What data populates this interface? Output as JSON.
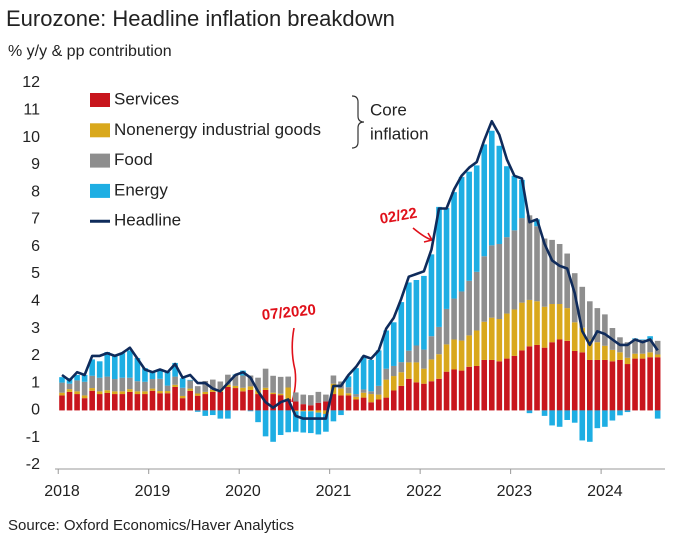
{
  "chart_data": {
    "type": "stacked-bar-line",
    "title": "Eurozone: Headline inflation breakdown",
    "subtitle": "% y/y & pp contribution",
    "source": "Source: Oxford Economics/Haver Analytics",
    "bracket_label": [
      "Core",
      "inflation"
    ],
    "annotations": [
      "07/2020",
      "02/22"
    ],
    "categories": [
      "2018",
      null,
      null,
      null,
      null,
      null,
      null,
      null,
      null,
      null,
      null,
      null,
      "2019",
      null,
      null,
      null,
      null,
      null,
      null,
      null,
      null,
      null,
      null,
      null,
      "2020",
      null,
      null,
      null,
      null,
      null,
      null,
      null,
      null,
      null,
      null,
      null,
      "2021",
      null,
      null,
      null,
      null,
      null,
      null,
      null,
      null,
      null,
      null,
      null,
      "2022",
      null,
      null,
      null,
      null,
      null,
      null,
      null,
      null,
      null,
      null,
      null,
      "2023",
      null,
      null,
      null,
      null,
      null,
      null,
      null,
      null,
      null,
      null,
      null,
      "2024",
      null,
      null,
      null,
      null,
      null,
      null,
      null
    ],
    "series": [
      {
        "name": "Services",
        "color": "#c8151d",
        "values": [
          0.55,
          0.68,
          0.6,
          0.45,
          0.72,
          0.6,
          0.64,
          0.6,
          0.6,
          0.68,
          0.6,
          0.6,
          0.72,
          0.63,
          0.63,
          0.86,
          0.45,
          0.72,
          0.54,
          0.6,
          0.68,
          0.68,
          0.86,
          0.82,
          0.7,
          0.75,
          0.6,
          0.75,
          0.6,
          0.56,
          0.42,
          0.33,
          0.23,
          0.19,
          0.28,
          0.33,
          0.6,
          0.55,
          0.55,
          0.4,
          0.47,
          0.3,
          0.4,
          0.47,
          0.73,
          0.9,
          1.16,
          1.03,
          0.98,
          1.07,
          1.16,
          1.42,
          1.5,
          1.46,
          1.6,
          1.63,
          1.85,
          1.85,
          1.8,
          1.9,
          2.0,
          2.2,
          2.35,
          2.4,
          2.3,
          2.5,
          2.6,
          2.55,
          2.18,
          2.13,
          1.85,
          1.85,
          1.85,
          1.8,
          1.85,
          1.7,
          1.9,
          1.9,
          1.95,
          1.95
        ]
      },
      {
        "name": "Nonenergy industrial goods",
        "color": "#d9a81c",
        "values": [
          0.1,
          0.1,
          0.1,
          0.1,
          0.1,
          0.1,
          0.1,
          0.1,
          0.1,
          0.1,
          0.1,
          0.1,
          0.08,
          0.08,
          0.08,
          0.08,
          0.08,
          0.08,
          0.08,
          0.08,
          0.08,
          0.08,
          0.08,
          0.08,
          0.13,
          0.13,
          0.13,
          0.08,
          0.05,
          0.05,
          0.42,
          -0.03,
          -0.03,
          -0.03,
          -0.08,
          -0.13,
          0.38,
          0.25,
          0.08,
          0.1,
          0.18,
          0.3,
          0.18,
          0.66,
          0.53,
          0.5,
          0.6,
          0.73,
          0.55,
          0.8,
          0.9,
          1.0,
          1.1,
          1.1,
          1.15,
          1.3,
          1.4,
          1.55,
          1.55,
          1.65,
          1.7,
          1.75,
          1.7,
          1.6,
          1.5,
          1.4,
          1.3,
          1.2,
          1.05,
          0.9,
          0.75,
          0.65,
          0.52,
          0.42,
          0.28,
          0.23,
          0.18,
          0.18,
          0.18,
          0.1
        ]
      },
      {
        "name": "Food",
        "color": "#8e8e8e",
        "values": [
          0.37,
          0.2,
          0.4,
          0.5,
          0.45,
          0.5,
          0.5,
          0.45,
          0.5,
          0.42,
          0.37,
          0.35,
          0.35,
          0.45,
          0.2,
          0.3,
          0.3,
          0.3,
          0.27,
          0.4,
          0.37,
          0.3,
          0.37,
          0.4,
          0.45,
          0.4,
          0.47,
          0.7,
          0.62,
          0.62,
          0.4,
          0.33,
          0.35,
          0.37,
          0.4,
          0.25,
          0.3,
          0.26,
          0.22,
          0.1,
          0.12,
          0.1,
          0.32,
          0.4,
          0.37,
          0.37,
          0.43,
          0.62,
          0.7,
          0.85,
          1.0,
          1.3,
          1.5,
          1.8,
          2.0,
          2.15,
          2.4,
          2.65,
          2.75,
          2.8,
          2.9,
          3.1,
          3.1,
          2.75,
          2.5,
          2.35,
          2.2,
          2.0,
          1.8,
          1.5,
          1.4,
          1.25,
          1.15,
          0.8,
          0.55,
          0.57,
          0.53,
          0.5,
          0.47,
          0.5
        ]
      },
      {
        "name": "Energy",
        "color": "#1eaee3",
        "values": [
          0.2,
          0.2,
          0.2,
          0.25,
          0.6,
          0.6,
          0.9,
          0.9,
          0.9,
          1.0,
          0.85,
          0.5,
          0.25,
          0.35,
          0.5,
          0.5,
          0.35,
          0.02,
          -0.05,
          -0.2,
          -0.17,
          -0.3,
          -0.3,
          0.02,
          0.18,
          -0.03,
          -0.43,
          -0.95,
          -1.15,
          -0.9,
          -0.8,
          -0.75,
          -0.78,
          -0.8,
          -0.8,
          -0.65,
          -0.4,
          -0.17,
          0.4,
          0.95,
          1.2,
          1.15,
          1.3,
          1.4,
          1.6,
          2.2,
          2.5,
          2.4,
          2.7,
          3.0,
          4.4,
          3.7,
          3.9,
          4.2,
          4.0,
          3.9,
          4.1,
          4.2,
          3.6,
          2.6,
          2.0,
          1.4,
          -0.1,
          0.25,
          -0.2,
          -0.55,
          -0.6,
          -0.35,
          -0.45,
          -1.1,
          -1.15,
          -0.65,
          -0.6,
          -0.37,
          -0.18,
          -0.06,
          0.03,
          0.02,
          0.12,
          -0.3
        ]
      },
      {
        "name": "Headline",
        "color": "#0f2b5b",
        "kind": "line",
        "values": [
          1.3,
          1.1,
          1.4,
          1.3,
          2.0,
          2.0,
          2.1,
          2.0,
          2.1,
          2.3,
          1.9,
          1.5,
          1.4,
          1.5,
          1.4,
          1.7,
          1.2,
          1.3,
          1.0,
          1.0,
          0.8,
          0.7,
          1.0,
          1.3,
          1.4,
          1.2,
          0.7,
          0.3,
          0.1,
          0.3,
          0.4,
          -0.2,
          -0.3,
          -0.3,
          -0.3,
          -0.3,
          0.9,
          0.9,
          1.3,
          1.6,
          2.0,
          1.9,
          2.2,
          3.0,
          3.4,
          4.1,
          4.9,
          5.0,
          5.1,
          5.9,
          7.4,
          7.4,
          8.1,
          8.6,
          8.9,
          9.1,
          9.9,
          10.6,
          10.1,
          9.2,
          8.6,
          8.5,
          6.9,
          7.0,
          6.1,
          5.5,
          5.3,
          5.2,
          4.3,
          2.9,
          2.4,
          2.9,
          2.8,
          2.6,
          2.4,
          2.4,
          2.6,
          2.5,
          2.6,
          2.2
        ]
      }
    ],
    "ylim": [
      -2,
      12
    ],
    "yticks": [
      -2,
      -1,
      0,
      1,
      2,
      3,
      4,
      5,
      6,
      7,
      8,
      9,
      10,
      11,
      12
    ],
    "grid": false,
    "legend": "upper left"
  }
}
